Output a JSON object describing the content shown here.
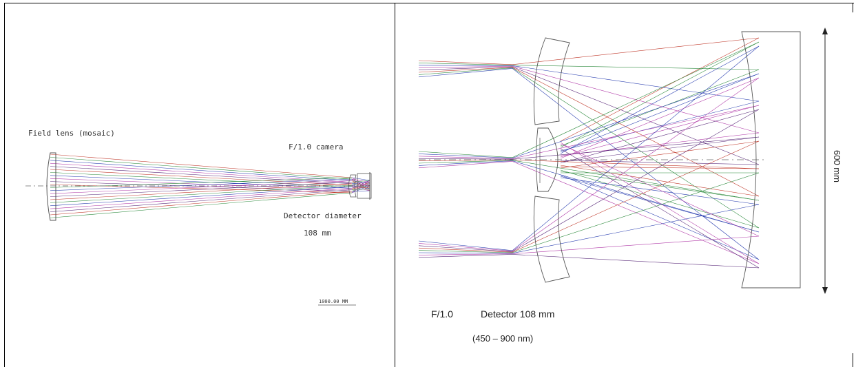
{
  "left_panel": {
    "field_lens_label": "Field lens (mosaic)",
    "camera_label": "F/1.0 camera",
    "detector_label": "Detector diameter",
    "detector_size": "108 mm",
    "scale_bar_label": "1000.00 MM"
  },
  "right_panel": {
    "focal_ratio": "F/1.0",
    "detector_text": "Detector 108 mm",
    "wavelength_range": "(450 – 900 nm)",
    "height_dimension": "600 mm"
  },
  "colors": {
    "ray_red": "#c0392b",
    "ray_green": "#2e8b3e",
    "ray_blue": "#2a3fb0",
    "ray_magenta": "#b03aa8",
    "ray_purple": "#5a2a7a",
    "optics_outline": "#555555"
  }
}
